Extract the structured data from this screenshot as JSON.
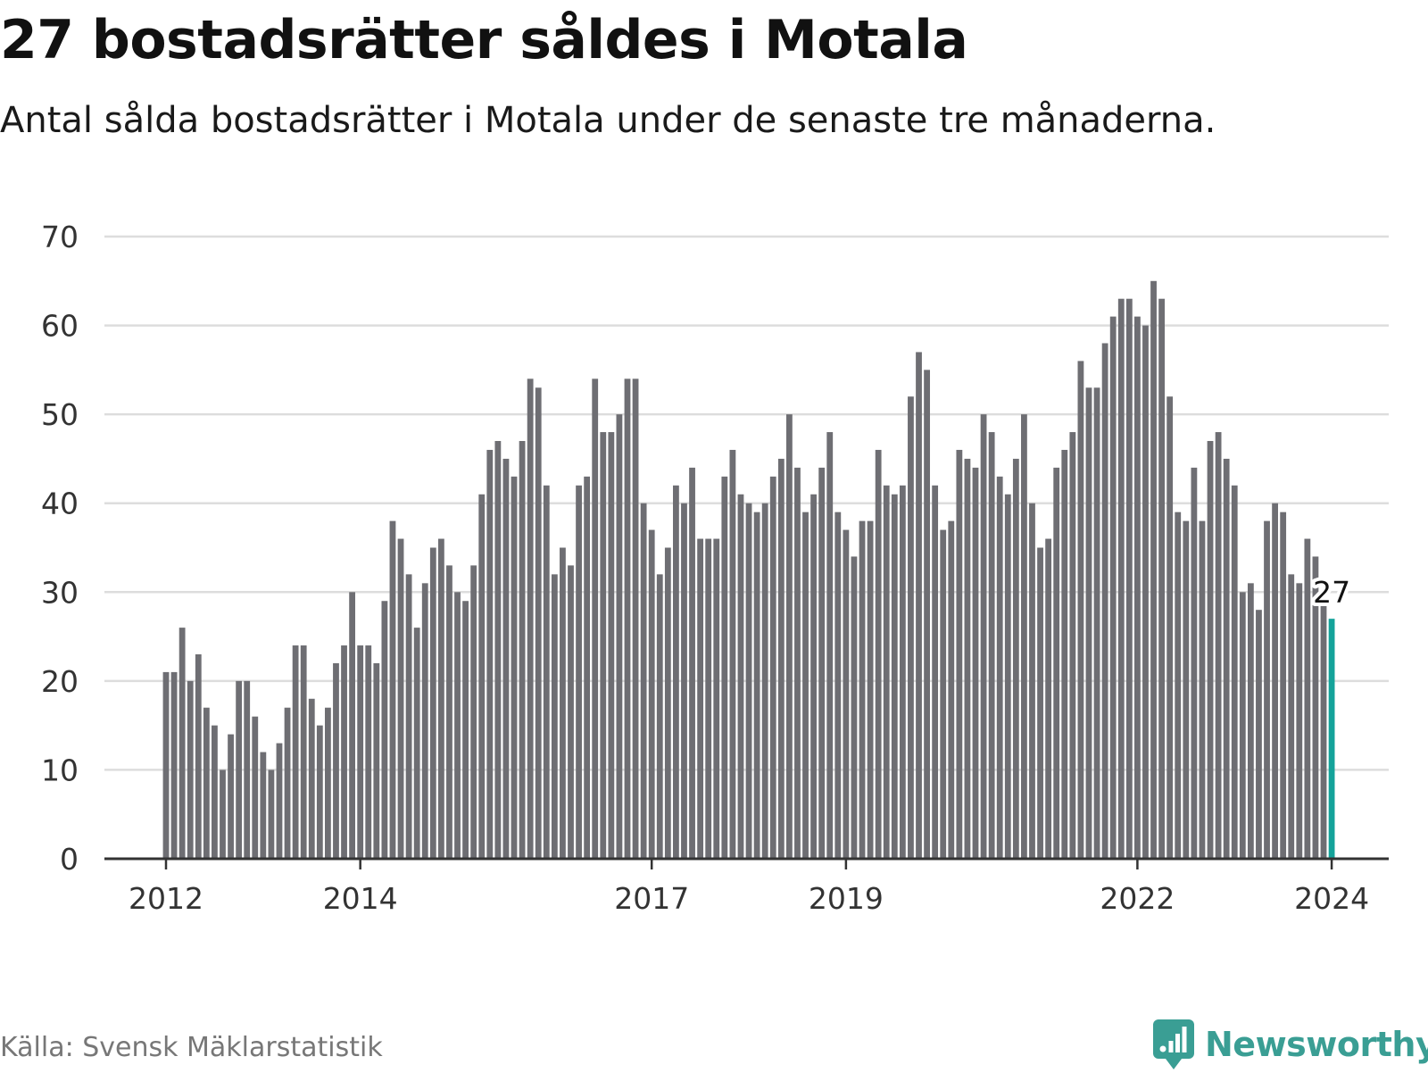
{
  "header": {
    "title": "27 bostadsrätter såldes i Motala",
    "subtitle": "Antal sålda bostadsrätter i Motala under de senaste tre månaderna."
  },
  "footer": {
    "source": "Källa: Svensk Mäklarstatistik",
    "brand": "Newsworthy"
  },
  "colors": {
    "bar": "#6e6e73",
    "highlight": "#14a39a",
    "grid": "#dddddd",
    "axis": "#333333",
    "brand": "#3a9e94"
  },
  "chart_data": {
    "type": "bar",
    "title": "27 bostadsrätter såldes i Motala",
    "subtitle": "Antal sålda bostadsrätter i Motala under de senaste tre månaderna.",
    "xlabel": "",
    "ylabel": "",
    "ylim": [
      0,
      70
    ],
    "yticks": [
      0,
      10,
      20,
      30,
      40,
      50,
      60,
      70
    ],
    "grid": true,
    "series": [
      {
        "name": "Antal sålda bostadsrätter",
        "values": [
          21,
          21,
          26,
          20,
          23,
          17,
          15,
          10,
          14,
          20,
          20,
          16,
          12,
          10,
          13,
          17,
          24,
          24,
          18,
          15,
          17,
          22,
          24,
          30,
          24,
          24,
          22,
          29,
          38,
          36,
          32,
          26,
          31,
          35,
          36,
          33,
          30,
          29,
          33,
          41,
          46,
          47,
          45,
          43,
          47,
          54,
          53,
          42,
          32,
          35,
          33,
          42,
          43,
          54,
          48,
          48,
          50,
          54,
          54,
          40,
          37,
          32,
          35,
          42,
          40,
          44,
          36,
          36,
          36,
          43,
          46,
          41,
          40,
          39,
          40,
          43,
          45,
          50,
          44,
          39,
          41,
          44,
          48,
          39,
          37,
          34,
          38,
          38,
          46,
          42,
          41,
          42,
          52,
          57,
          55,
          42,
          37,
          38,
          46,
          45,
          44,
          50,
          48,
          43,
          41,
          45,
          50,
          40,
          35,
          36,
          44,
          46,
          48,
          56,
          53,
          53,
          58,
          61,
          63,
          63,
          61,
          60,
          65,
          63,
          52,
          39,
          38,
          44,
          38,
          47,
          48,
          45,
          42,
          30,
          31,
          28,
          38,
          40,
          39,
          32,
          31,
          36,
          34,
          29,
          27
        ]
      }
    ],
    "x_tick_labels": [
      {
        "label": "2012",
        "index": 0
      },
      {
        "label": "2014",
        "index": 24
      },
      {
        "label": "2017",
        "index": 60
      },
      {
        "label": "2019",
        "index": 84
      },
      {
        "label": "2022",
        "index": 120
      },
      {
        "label": "2024",
        "index": 144
      }
    ],
    "highlight": {
      "index": 144,
      "value": 27,
      "label": "27"
    }
  }
}
